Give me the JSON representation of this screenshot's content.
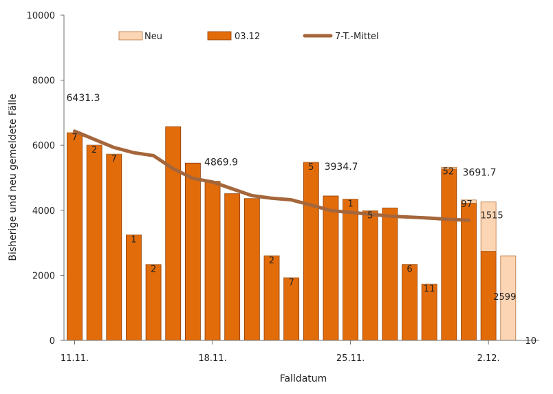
{
  "chart_data": {
    "type": "bar",
    "stacked": true,
    "title": "",
    "xlabel": "Falldatum",
    "ylabel": "Bisherige und neu gemeldete Fälle",
    "ylim": [
      0,
      10000
    ],
    "yticks": [
      "0",
      "2000",
      "4000",
      "6000",
      "8000",
      "10000"
    ],
    "xtick_labels": [
      {
        "category": "11.11.",
        "label": "11.11."
      },
      {
        "category": "18.11.",
        "label": "18.11."
      },
      {
        "category": "25.11.",
        "label": "25.11."
      },
      {
        "category": "02.12.",
        "label": "2.12."
      }
    ],
    "categories": [
      "11.11.",
      "12.11.",
      "13.11.",
      "14.11.",
      "15.11.",
      "16.11.",
      "17.11.",
      "18.11.",
      "19.11.",
      "20.11.",
      "21.11.",
      "22.11.",
      "23.11.",
      "24.11.",
      "25.11.",
      "26.11.",
      "27.11.",
      "28.11.",
      "29.11.",
      "30.11.",
      "01.12.",
      "02.12.",
      "03.12."
    ],
    "series": [
      {
        "name": "03.12",
        "color": "#e36c0a",
        "values": [
          6380,
          6000,
          5720,
          3240,
          2330,
          6570,
          5450,
          4890,
          4510,
          4360,
          2600,
          1920,
          5470,
          4440,
          4340,
          3980,
          4070,
          2330,
          1720,
          5270,
          4220,
          2740,
          0
        ]
      },
      {
        "name": "Neu",
        "color": "#fcd5b4",
        "values": [
          7,
          2,
          7,
          1,
          2,
          0,
          0,
          0,
          0,
          0,
          2,
          7,
          5,
          0,
          1,
          5,
          0,
          6,
          11,
          52,
          97,
          1515,
          2599
        ]
      }
    ],
    "segment_labels": [
      {
        "category": "11.11.",
        "text": "7"
      },
      {
        "category": "12.11.",
        "text": "2"
      },
      {
        "category": "13.11.",
        "text": "7"
      },
      {
        "category": "14.11.",
        "text": "1"
      },
      {
        "category": "15.11.",
        "text": "2"
      },
      {
        "category": "21.11.",
        "text": "2"
      },
      {
        "category": "22.11.",
        "text": "7"
      },
      {
        "category": "23.11.",
        "text": "5"
      },
      {
        "category": "25.11.",
        "text": "1"
      },
      {
        "category": "26.11.",
        "text": "5"
      },
      {
        "category": "28.11.",
        "text": "6"
      },
      {
        "category": "29.11.",
        "text": "11"
      },
      {
        "category": "30.11.",
        "text": "52"
      },
      {
        "category": "01.12.",
        "text": "97"
      },
      {
        "category": "02.12.",
        "text": "1515"
      },
      {
        "category": "03.12.",
        "text": "2599"
      }
    ],
    "extra_labels": [
      {
        "category": "03.12.",
        "text": "10"
      }
    ],
    "moving_average": {
      "name": "7-T.-Mittel",
      "color": "#a5663b",
      "values": [
        6431.3,
        6180,
        5930,
        5770,
        5680,
        5280,
        4980,
        4869.9,
        4660,
        4450,
        4370,
        4320,
        4160,
        3990,
        3934.7,
        3880,
        3820,
        3790,
        3760,
        3720,
        3691.7
      ],
      "labels": [
        {
          "category": "11.11.",
          "text": "6431.3"
        },
        {
          "category": "18.11.",
          "text": "4869.9"
        },
        {
          "category": "25.11.",
          "text": "3934.7"
        },
        {
          "category": "01.12.",
          "text": "3691.7"
        }
      ]
    },
    "legend": {
      "position": "top",
      "items": [
        {
          "label": "Neu",
          "kind": "bar",
          "color": "#fcd5b4"
        },
        {
          "label": "03.12",
          "kind": "bar",
          "color": "#e36c0a"
        },
        {
          "label": "7-T.-Mittel",
          "kind": "line",
          "color": "#a5663b"
        }
      ]
    },
    "grid": false
  }
}
